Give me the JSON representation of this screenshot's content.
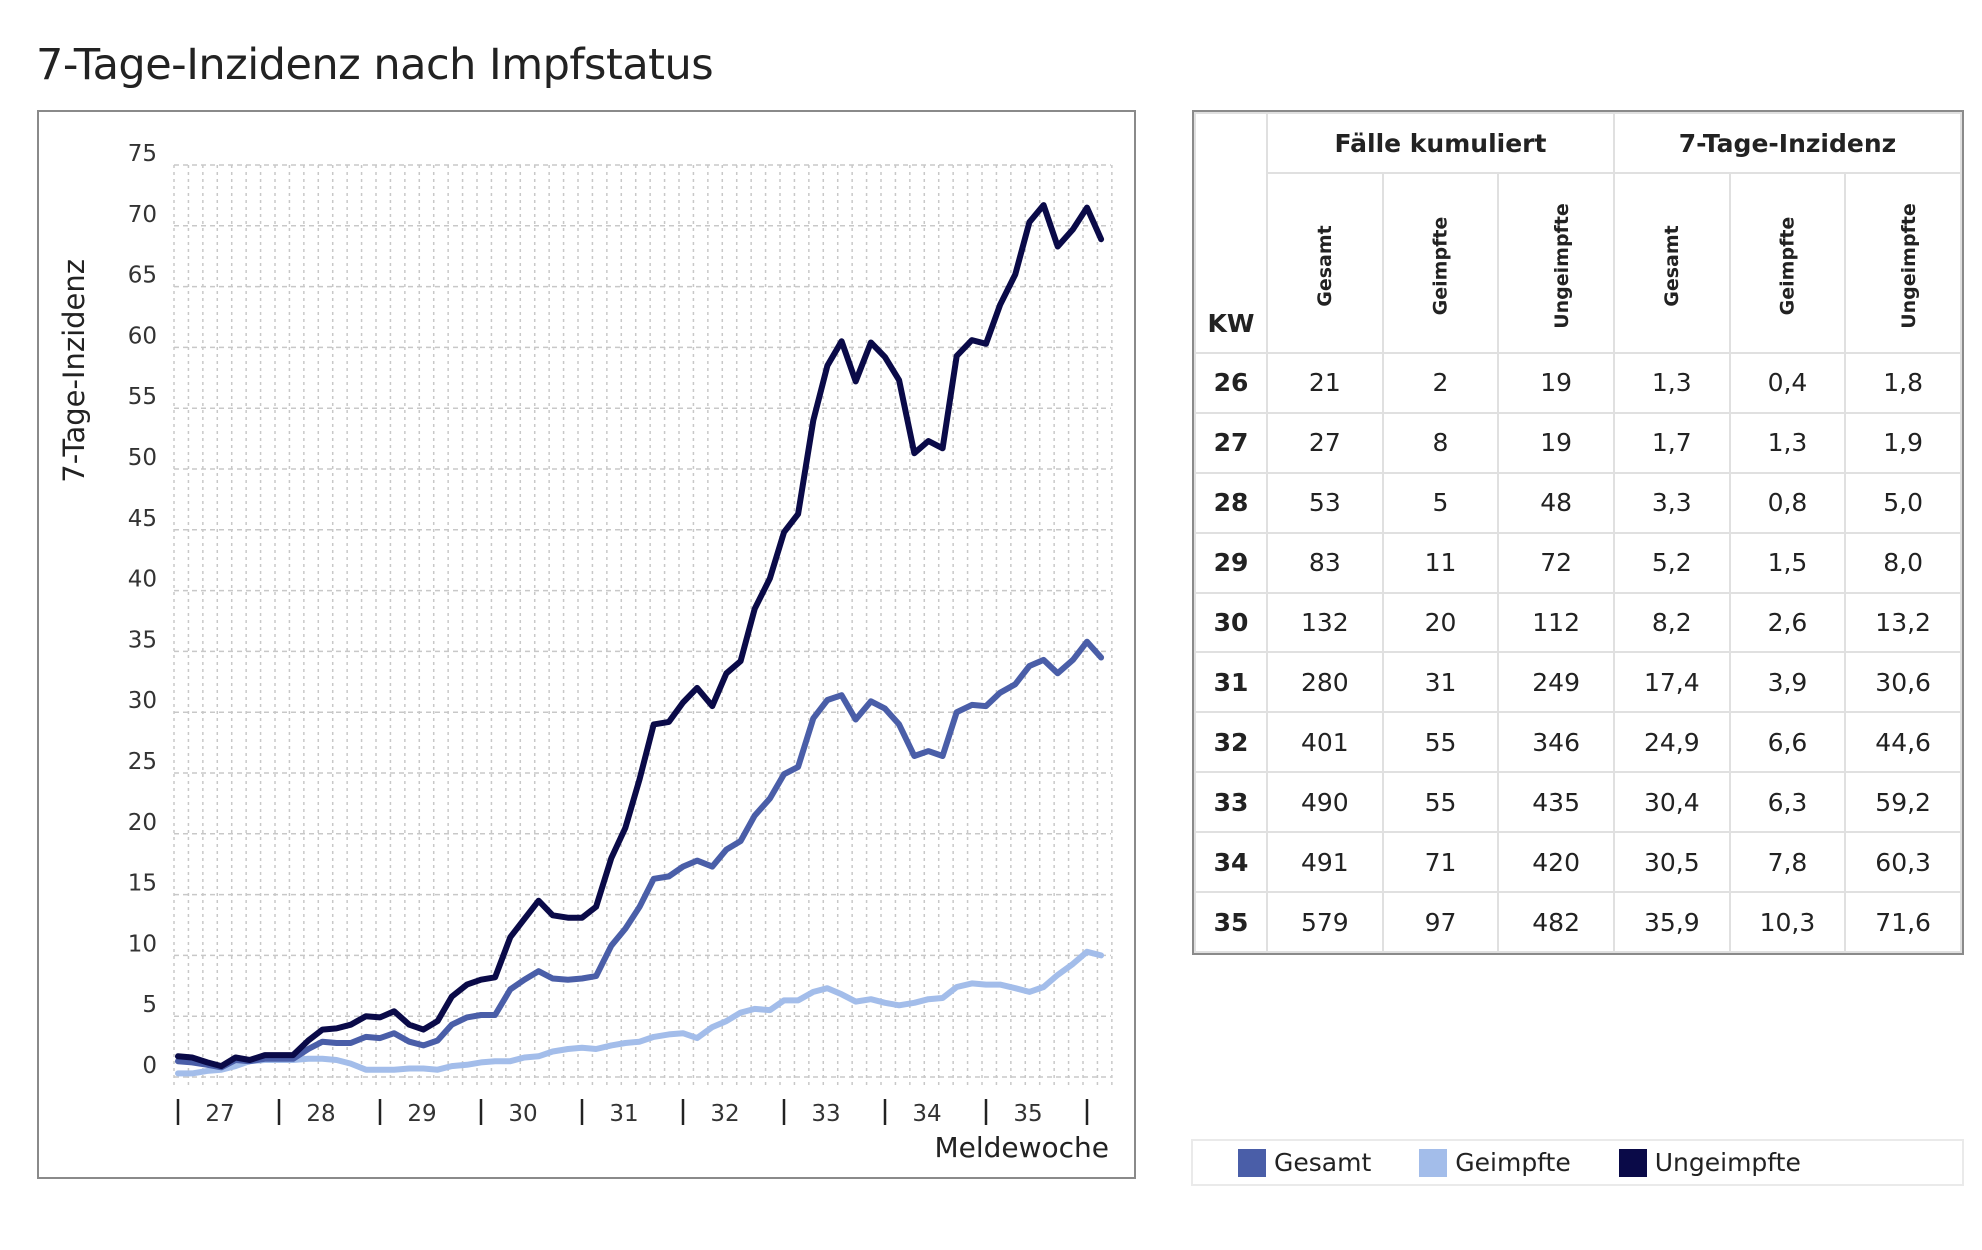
{
  "title": "7-Tage-Inzidenz nach Impfstatus",
  "chart_data": {
    "type": "line",
    "ylabel": "7-Tage-Inzidenz",
    "xlabel": "Meldewoche",
    "ylim": [
      0,
      75
    ],
    "yticks": [
      "0",
      "5",
      "10",
      "15",
      "20",
      "25",
      "30",
      "35",
      "40",
      "45",
      "50",
      "55",
      "60",
      "65",
      "70",
      "75"
    ],
    "xticks": [
      "27",
      "28",
      "29",
      "30",
      "31",
      "32",
      "33",
      "34",
      "35"
    ],
    "xlim": [
      26.96,
      36.18
    ],
    "grid": true,
    "legend_position": "bottom-right",
    "x": [
      27.0,
      27.14,
      27.29,
      27.43,
      27.57,
      27.71,
      27.86,
      28.0,
      28.14,
      28.29,
      28.43,
      28.57,
      28.71,
      28.86,
      29.0,
      29.14,
      29.29,
      29.43,
      29.57,
      29.71,
      29.86,
      30.0,
      30.14,
      30.29,
      30.43,
      30.57,
      30.71,
      30.86,
      31.0,
      31.14,
      31.29,
      31.43,
      31.57,
      31.71,
      31.86,
      32.0,
      32.14,
      32.29,
      32.43,
      32.57,
      32.71,
      32.86,
      33.0,
      33.14,
      33.29,
      33.43,
      33.57,
      33.71,
      33.86,
      34.0,
      34.14,
      34.29,
      34.43,
      34.57,
      34.71,
      34.86,
      35.0,
      35.14,
      35.29,
      35.43,
      35.57,
      35.71,
      35.86,
      36.0,
      36.14
    ],
    "series": [
      {
        "name": "Gesamt",
        "color": "#4a5ea8",
        "values": [
          1.3,
          1.2,
          1.0,
          0.8,
          1.4,
          1.3,
          1.5,
          1.5,
          1.5,
          2.3,
          2.9,
          2.8,
          2.8,
          3.3,
          3.2,
          3.6,
          2.9,
          2.6,
          3.0,
          4.3,
          4.9,
          5.1,
          5.1,
          7.2,
          8.0,
          8.7,
          8.1,
          8.0,
          8.1,
          8.3,
          10.8,
          12.2,
          14.0,
          16.3,
          16.5,
          17.3,
          17.8,
          17.3,
          18.7,
          19.4,
          21.5,
          22.9,
          24.9,
          25.5,
          29.5,
          31.0,
          31.4,
          29.4,
          30.9,
          30.3,
          29.0,
          26.4,
          26.8,
          26.4,
          30.0,
          30.6,
          30.5,
          31.6,
          32.3,
          33.8,
          34.3,
          33.2,
          34.3,
          35.8,
          34.5
        ]
      },
      {
        "name": "Geimpfte",
        "color": "#a3bdea",
        "values": [
          0.3,
          0.3,
          0.5,
          0.6,
          0.9,
          1.3,
          1.4,
          1.4,
          1.4,
          1.5,
          1.5,
          1.4,
          1.1,
          0.6,
          0.6,
          0.6,
          0.7,
          0.7,
          0.6,
          0.9,
          1.0,
          1.2,
          1.3,
          1.3,
          1.6,
          1.7,
          2.1,
          2.3,
          2.4,
          2.3,
          2.6,
          2.8,
          2.9,
          3.3,
          3.5,
          3.6,
          3.2,
          4.1,
          4.6,
          5.3,
          5.6,
          5.5,
          6.3,
          6.3,
          7.0,
          7.3,
          6.8,
          6.2,
          6.4,
          6.1,
          5.9,
          6.1,
          6.4,
          6.5,
          7.4,
          7.7,
          7.6,
          7.6,
          7.3,
          7.0,
          7.4,
          8.4,
          9.3,
          10.3,
          10.0
        ]
      },
      {
        "name": "Ungeimpfte",
        "color": "#0a0a48",
        "values": [
          1.7,
          1.6,
          1.2,
          0.9,
          1.6,
          1.4,
          1.8,
          1.8,
          1.8,
          3.0,
          3.9,
          4.0,
          4.3,
          5.0,
          4.9,
          5.4,
          4.3,
          3.9,
          4.6,
          6.6,
          7.6,
          8.0,
          8.2,
          11.5,
          13.0,
          14.5,
          13.3,
          13.1,
          13.1,
          14.0,
          18.0,
          20.5,
          24.5,
          29.0,
          29.2,
          30.8,
          32.0,
          30.5,
          33.2,
          34.2,
          38.5,
          41.0,
          44.8,
          46.3,
          54.0,
          58.5,
          60.5,
          57.2,
          60.4,
          59.2,
          57.3,
          51.3,
          52.3,
          51.7,
          59.3,
          60.6,
          60.3,
          63.5,
          66.0,
          70.3,
          71.7,
          68.3,
          69.7,
          71.5,
          68.9
        ]
      }
    ]
  },
  "table": {
    "group_headers": [
      "Fälle kumuliert",
      "7-Tage-Inzidenz"
    ],
    "kw_header": "KW",
    "sub_headers": [
      "Gesamt",
      "Geimpfte",
      "Ungeimpfte",
      "Gesamt",
      "Geimpfte",
      "Ungeimpfte"
    ],
    "rows": [
      [
        "26",
        "21",
        "2",
        "19",
        "1,3",
        "0,4",
        "1,8"
      ],
      [
        "27",
        "27",
        "8",
        "19",
        "1,7",
        "1,3",
        "1,9"
      ],
      [
        "28",
        "53",
        "5",
        "48",
        "3,3",
        "0,8",
        "5,0"
      ],
      [
        "29",
        "83",
        "11",
        "72",
        "5,2",
        "1,5",
        "8,0"
      ],
      [
        "30",
        "132",
        "20",
        "112",
        "8,2",
        "2,6",
        "13,2"
      ],
      [
        "31",
        "280",
        "31",
        "249",
        "17,4",
        "3,9",
        "30,6"
      ],
      [
        "32",
        "401",
        "55",
        "346",
        "24,9",
        "6,6",
        "44,6"
      ],
      [
        "33",
        "490",
        "55",
        "435",
        "30,4",
        "6,3",
        "59,2"
      ],
      [
        "34",
        "491",
        "71",
        "420",
        "30,5",
        "7,8",
        "60,3"
      ],
      [
        "35",
        "579",
        "97",
        "482",
        "35,9",
        "10,3",
        "71,6"
      ]
    ]
  },
  "legend": [
    {
      "label": "Gesamt",
      "color": "#4a5ea8"
    },
    {
      "label": "Geimpfte",
      "color": "#a3bdea"
    },
    {
      "label": "Ungeimpfte",
      "color": "#0a0a48"
    }
  ]
}
